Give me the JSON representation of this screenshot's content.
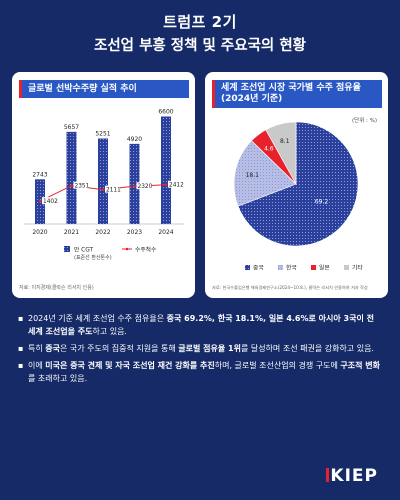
{
  "header": {
    "title_line1": "트럼프 2기",
    "title_line2": "조선업 부흥 정책 및 주요국의 현황"
  },
  "left_card": {
    "chip": "글로벌 선박수주량 실적 추이",
    "source": "자료: 이지경제(클락슨 리서치 인용)"
  },
  "right_card": {
    "chip_line1": "세계 조선업 시장 국가별 수주 점유율",
    "chip_line2": "(2024년 기준)",
    "unit": "(단위 : %)",
    "source": "자료: 한국수출입은행 해외경제연구소(2024~10.8.), 클락슨 리서치 인용하여 저자 작성"
  },
  "chart_data": [
    {
      "type": "bar",
      "categories": [
        "2020",
        "2021",
        "2022",
        "2023",
        "2024"
      ],
      "series": [
        {
          "name": "만 CGT\n(표준선 환산톤수)",
          "type": "bar",
          "values": [
            2743,
            5657,
            5251,
            4920,
            6600
          ]
        },
        {
          "name": "수주척수",
          "type": "line",
          "values": [
            1402,
            2351,
            2111,
            2320,
            2412
          ]
        }
      ],
      "legend": [
        "만 CGT",
        "(표준선 환산톤수)",
        "수주척수"
      ],
      "ylim": [
        0,
        7000
      ],
      "legend_position": "bottom",
      "grid": false,
      "colors": {
        "bar": "#2b3f9e",
        "line": "#e8222c"
      }
    },
    {
      "type": "pie",
      "labels": [
        "중국",
        "한국",
        "일본",
        "기타"
      ],
      "values": [
        69.2,
        18.1,
        4.6,
        8.1
      ],
      "colors": [
        "#2b3f9e",
        "#b7bee6",
        "#e8222c",
        "#c9c9c9"
      ],
      "legend_position": "bottom"
    }
  ],
  "bullets": [
    {
      "parts": [
        {
          "t": "2024년 기준 세계 조선업 수주 점유율은 ",
          "b": false
        },
        {
          "t": "중국 69.2%, 한국 18.1%, 일본 4.6%로 아시아 3국이 전 세계 조선업을 주도",
          "b": true
        },
        {
          "t": "하고 있음.",
          "b": false
        }
      ]
    },
    {
      "parts": [
        {
          "t": "특히 ",
          "b": false
        },
        {
          "t": "중국",
          "b": true
        },
        {
          "t": "은 국가 주도의 집중적 지원을 통해 ",
          "b": false
        },
        {
          "t": "글로벌 점유율 1위",
          "b": true
        },
        {
          "t": "를 달성하며 조선 패권을 강화하고 있음.",
          "b": false
        }
      ]
    },
    {
      "parts": [
        {
          "t": "이에 ",
          "b": false
        },
        {
          "t": "미국은 중국 견제 및 자국 조선업 재건 강화를 추진",
          "b": true
        },
        {
          "t": "하며, 글로벌 조선산업의 경쟁 구도에 ",
          "b": false
        },
        {
          "t": "구조적 변화",
          "b": true
        },
        {
          "t": "를 초래하고 있음.",
          "b": false
        }
      ]
    }
  ],
  "logo": "KIEP"
}
